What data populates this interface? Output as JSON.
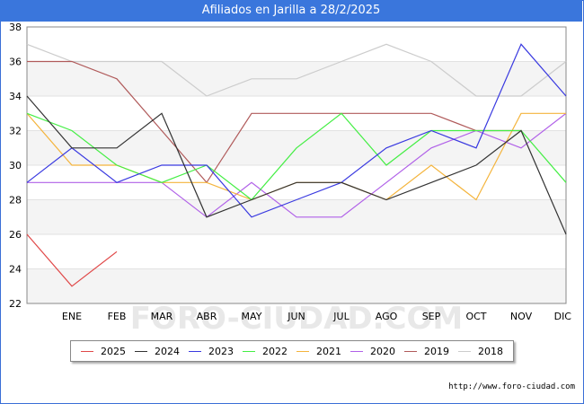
{
  "title": "Afiliados en Jarilla a 28/2/2025",
  "source_url": "http://www.foro-ciudad.com",
  "watermark": "FORO-CIUDAD.COM",
  "chart_data": {
    "type": "line",
    "categories": [
      "",
      "ENE",
      "FEB",
      "MAR",
      "ABR",
      "MAY",
      "JUN",
      "JUL",
      "AGO",
      "SEP",
      "OCT",
      "NOV",
      "DIC"
    ],
    "ylim": [
      22,
      38
    ],
    "yticks": [
      22,
      24,
      26,
      28,
      30,
      32,
      34,
      36,
      38
    ],
    "grid": true,
    "legend_position": "bottom",
    "series": [
      {
        "name": "2025",
        "color": "#e04848",
        "values": [
          26,
          23,
          25,
          null,
          null,
          null,
          null,
          null,
          null,
          null,
          null,
          null,
          null
        ]
      },
      {
        "name": "2024",
        "color": "#333333",
        "values": [
          34,
          31,
          31,
          33,
          27,
          28,
          29,
          29,
          28,
          29,
          30,
          32,
          26
        ]
      },
      {
        "name": "2023",
        "color": "#3a3ae0",
        "values": [
          29,
          31,
          29,
          30,
          30,
          27,
          28,
          29,
          31,
          32,
          31,
          37,
          34
        ]
      },
      {
        "name": "2022",
        "color": "#44ee44",
        "values": [
          33,
          32,
          30,
          29,
          30,
          28,
          31,
          33,
          30,
          32,
          32,
          32,
          29
        ]
      },
      {
        "name": "2021",
        "color": "#f4b43c",
        "values": [
          33,
          30,
          30,
          29,
          29,
          28,
          29,
          29,
          28,
          30,
          28,
          33,
          33
        ]
      },
      {
        "name": "2020",
        "color": "#b060e8",
        "values": [
          29,
          29,
          29,
          29,
          27,
          29,
          27,
          27,
          29,
          31,
          32,
          31,
          33
        ]
      },
      {
        "name": "2019",
        "color": "#b05a5a",
        "values": [
          36,
          36,
          35,
          32,
          29,
          33,
          33,
          33,
          33,
          33,
          32,
          32,
          null
        ]
      },
      {
        "name": "2018",
        "color": "#cccccc",
        "values": [
          37,
          36,
          36,
          36,
          34,
          35,
          35,
          36,
          37,
          36,
          34,
          34,
          36
        ]
      }
    ]
  }
}
